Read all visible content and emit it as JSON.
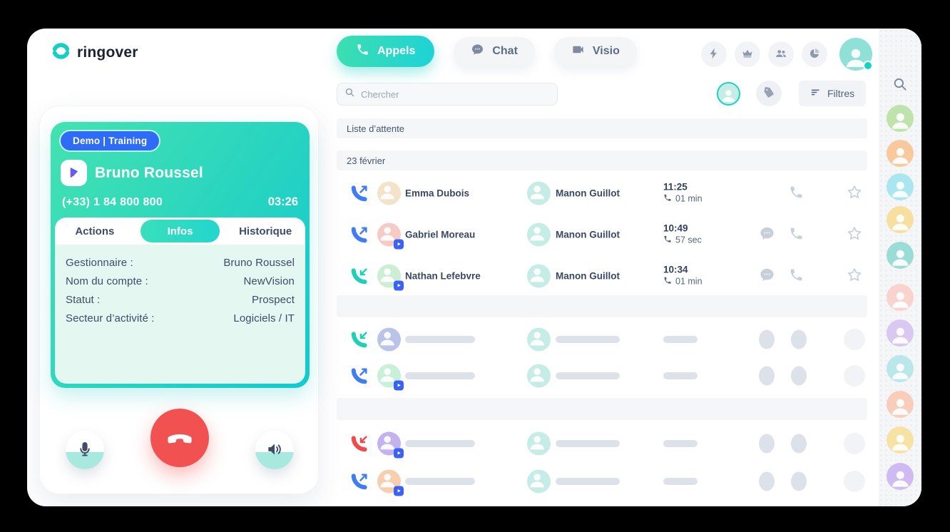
{
  "brand": {
    "name": "ringover"
  },
  "colors": {
    "accent_teal": "#1fd0c6",
    "accent_blue": "#2e6bf6",
    "outgoing": "#3f7cf6",
    "incoming": "#1fd0b8",
    "missed": "#ee4b4b",
    "hangup_red": "#f15151",
    "header_avatar": "#8fe0d6",
    "filter_avatar": "#c5ede6"
  },
  "nav": {
    "tabs": [
      {
        "label": "Appels",
        "icon": "phone-icon",
        "active": true
      },
      {
        "label": "Chat",
        "icon": "chat-bubble-icon",
        "active": false
      },
      {
        "label": "Visio",
        "icon": "video-icon",
        "active": false
      }
    ],
    "action_icons": [
      "flash-icon",
      "crown-icon",
      "users-icon",
      "stats-icon"
    ]
  },
  "toolbar": {
    "search_placeholder": "Chercher",
    "filters_label": "Filtres"
  },
  "call_panel": {
    "badge": "Demo | Training",
    "contact_name": "Bruno Roussel",
    "phone_number": "(+33) 1 84 800 800",
    "timer": "03:26",
    "tabs": [
      {
        "label": "Actions",
        "active": false
      },
      {
        "label": "Infos",
        "active": true
      },
      {
        "label": "Historique",
        "active": false
      }
    ],
    "info_fields": [
      {
        "label": "Gestionnaire :",
        "value": "Bruno Roussel"
      },
      {
        "label": "Nom du compte :",
        "value": "NewVision"
      },
      {
        "label": "Statut :",
        "value": "Prospect"
      },
      {
        "label": "Secteur d’activité :",
        "value": "Logiciels / IT"
      }
    ]
  },
  "list": {
    "queue_header": "Liste d’attente",
    "date_header": "23 février",
    "rows": [
      {
        "direction": "outgoing",
        "caller": "Emma Dubois",
        "caller_color": "#f3e3c9",
        "has_badge": false,
        "agent": "Manon Guillot",
        "agent_color": "#c5ede6",
        "time": "11:25",
        "duration": "01 min",
        "has_chat": false
      },
      {
        "direction": "outgoing",
        "caller": "Gabriel Moreau",
        "caller_color": "#f6cbc5",
        "has_badge": true,
        "agent": "Manon Guillot",
        "agent_color": "#c5ede6",
        "time": "10:49",
        "duration": "57 sec",
        "has_chat": true
      },
      {
        "direction": "incoming",
        "caller": "Nathan Lefebvre",
        "caller_color": "#cdeed3",
        "has_badge": true,
        "agent": "Manon Guillot",
        "agent_color": "#c5ede6",
        "time": "10:34",
        "duration": "01 min",
        "has_chat": true
      }
    ],
    "skeleton_sections": [
      {
        "rows": [
          {
            "direction": "incoming",
            "caller_color": "#b9c4e8",
            "has_badge": false
          },
          {
            "direction": "outgoing",
            "caller_color": "#c8efd8",
            "has_badge": true
          }
        ]
      },
      {
        "rows": [
          {
            "direction": "missed",
            "caller_color": "#c3b2f0",
            "has_badge": true
          },
          {
            "direction": "outgoing",
            "caller_color": "#f7cfae",
            "has_badge": true
          }
        ]
      }
    ],
    "skeleton_agent_color": "#c5ede6"
  },
  "sidebar": {
    "avatar_colors": [
      "#bfe3ad",
      "#f9c99e",
      "#a9e6ef",
      "#f7e09f",
      "#9cdcd6",
      "#f9d4cf",
      "#d9c8f1",
      "#b9e7ea",
      "#f8cebb",
      "#f6e3a3",
      "#cfbbf2"
    ]
  }
}
